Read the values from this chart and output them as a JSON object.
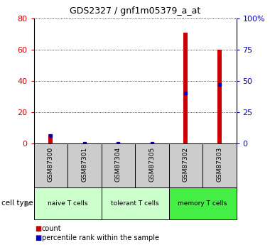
{
  "title": "GDS2327 / gnf1m05379_a_at",
  "samples": [
    "GSM87300",
    "GSM87301",
    "GSM87304",
    "GSM87305",
    "GSM87302",
    "GSM87303"
  ],
  "count_values": [
    6,
    0,
    0,
    0,
    71,
    60
  ],
  "percentile_values": [
    6,
    0,
    0,
    0,
    40,
    47
  ],
  "cell_groups": [
    {
      "label": "naive T cells",
      "span": [
        0,
        2
      ],
      "color": "#ccffcc"
    },
    {
      "label": "tolerant T cells",
      "span": [
        2,
        4
      ],
      "color": "#ccffcc"
    },
    {
      "label": "memory T cells",
      "span": [
        4,
        6
      ],
      "color": "#44ee44"
    }
  ],
  "left_ylim": [
    0,
    80
  ],
  "right_ylim": [
    0,
    100
  ],
  "left_yticks": [
    0,
    20,
    40,
    60,
    80
  ],
  "right_yticks": [
    0,
    25,
    50,
    75,
    100
  ],
  "right_yticklabels": [
    "0",
    "25",
    "50",
    "75",
    "100%"
  ],
  "bar_color": "#cc0000",
  "percentile_color": "#0000cc",
  "grid_color": "#000000",
  "sample_bg": "#cccccc",
  "left_tick_color": "#cc0000",
  "right_tick_color": "#0000cc",
  "bar_width": 0.12
}
